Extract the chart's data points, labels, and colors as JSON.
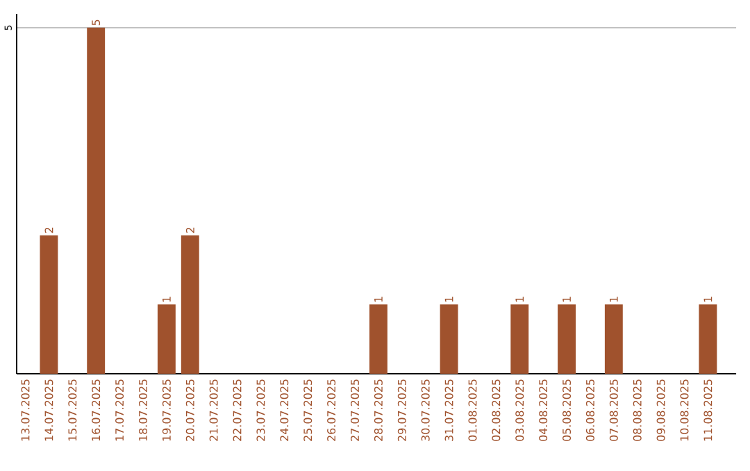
{
  "chart_data": {
    "type": "bar",
    "categories": [
      "13.07.2025",
      "14.07.2025",
      "15.07.2025",
      "16.07.2025",
      "17.07.2025",
      "18.07.2025",
      "19.07.2025",
      "20.07.2025",
      "21.07.2025",
      "22.07.2025",
      "23.07.2025",
      "24.07.2025",
      "25.07.2025",
      "26.07.2025",
      "27.07.2025",
      "28.07.2025",
      "29.07.2025",
      "30.07.2025",
      "31.07.2025",
      "01.08.2025",
      "02.08.2025",
      "03.08.2025",
      "04.08.2025",
      "05.08.2025",
      "06.08.2025",
      "07.08.2025",
      "08.08.2025",
      "09.08.2025",
      "10.08.2025",
      "11.08.2025"
    ],
    "values": [
      0,
      2,
      0,
      5,
      0,
      0,
      1,
      2,
      0,
      0,
      0,
      0,
      0,
      0,
      0,
      1,
      0,
      0,
      1,
      0,
      0,
      1,
      0,
      1,
      0,
      1,
      0,
      0,
      0,
      1
    ],
    "value_labels": [
      null,
      "2",
      null,
      "5",
      null,
      null,
      "1",
      "2",
      null,
      null,
      null,
      null,
      null,
      null,
      null,
      "1",
      null,
      null,
      "1",
      null,
      null,
      "1",
      null,
      "1",
      null,
      "1",
      null,
      null,
      null,
      "1"
    ],
    "color": "#a0522d",
    "ylim": [
      0,
      5.2
    ],
    "yticks": [
      5
    ],
    "grid": "y"
  }
}
